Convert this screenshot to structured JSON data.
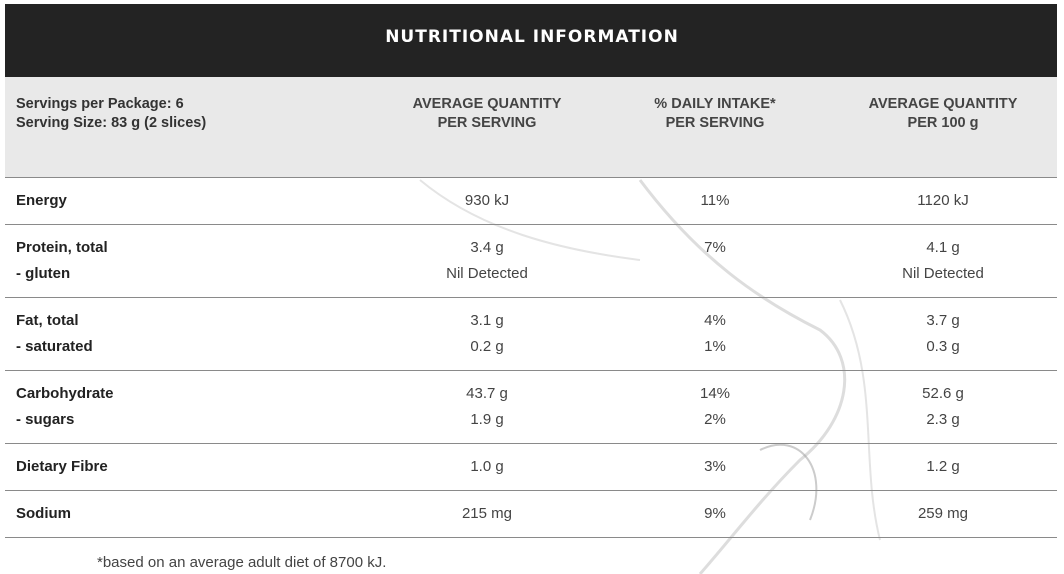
{
  "title": "NUTRITIONAL INFORMATION",
  "table": {
    "header": [
      [
        "Servings per Package: 6",
        "Serving Size: 83 g (2 slices)"
      ],
      [
        "AVERAGE QUANTITY",
        "PER SERVING"
      ],
      [
        "% DAILY INTAKE*",
        "PER SERVING"
      ],
      [
        "AVERAGE QUANTITY",
        "PER 100 g"
      ]
    ],
    "rows": [
      [
        [
          "Energy",
          "930 kJ",
          "11%",
          "1120 kJ"
        ]
      ],
      [
        [
          "Protein, total",
          "3.4 g",
          "7%",
          "4.1 g"
        ],
        [
          "- gluten",
          "Nil Detected",
          null,
          "Nil Detected"
        ]
      ],
      [
        [
          "Fat, total",
          "3.1 g",
          "4%",
          "3.7 g"
        ],
        [
          "- saturated",
          "0.2 g",
          "1%",
          "0.3 g"
        ]
      ],
      [
        [
          "Carbohydrate",
          "43.7 g",
          "14%",
          "52.6 g"
        ],
        [
          "- sugars",
          "1.9 g",
          "2%",
          "2.3 g"
        ]
      ],
      [
        [
          "Dietary Fibre",
          "1.0 g",
          "3%",
          "1.2 g"
        ]
      ],
      [
        [
          "Sodium",
          "215 mg",
          "9%",
          "259 mg"
        ]
      ]
    ]
  },
  "footnote": "*based on an average adult diet of 8700 kJ."
}
